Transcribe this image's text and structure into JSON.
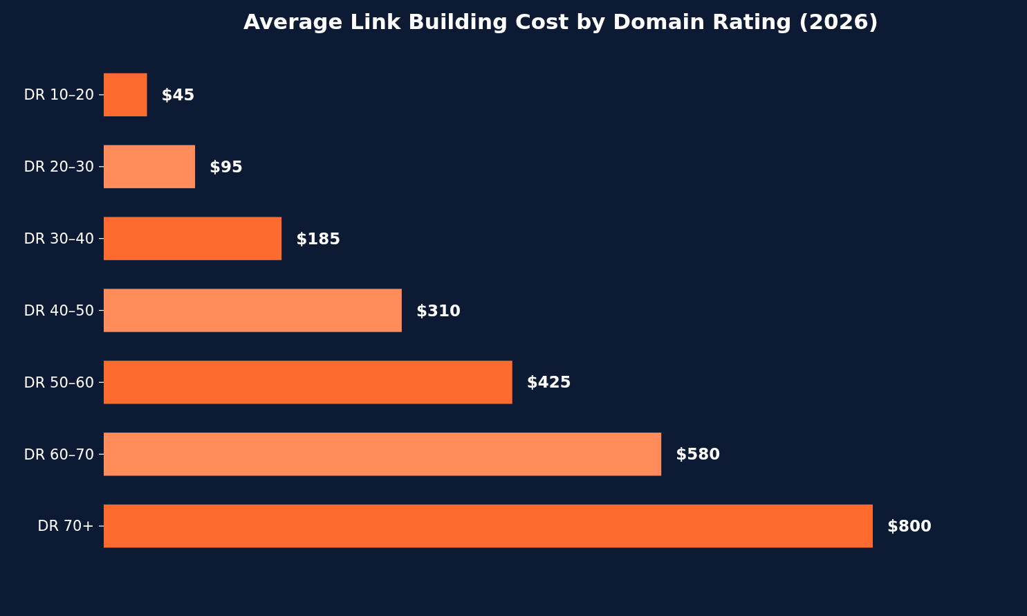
{
  "chart_data": {
    "type": "bar",
    "orientation": "horizontal",
    "title": "Average Link Building Cost by Domain Rating (2026)",
    "categories": [
      "DR 10–20",
      "DR 20–30",
      "DR 30–40",
      "DR 40–50",
      "DR 50–60",
      "DR 60–70",
      "DR 70+"
    ],
    "values": [
      45,
      95,
      185,
      310,
      425,
      580,
      800
    ],
    "colors": [
      "#ff6b2f",
      "#ff8c5a",
      "#ff6b2f",
      "#ff8c5a",
      "#ff6b2f",
      "#ff8c5a",
      "#ff6b2f"
    ],
    "value_labels": [
      "$45",
      "$95",
      "$185",
      "$310",
      "$425",
      "$580",
      "$800"
    ]
  }
}
